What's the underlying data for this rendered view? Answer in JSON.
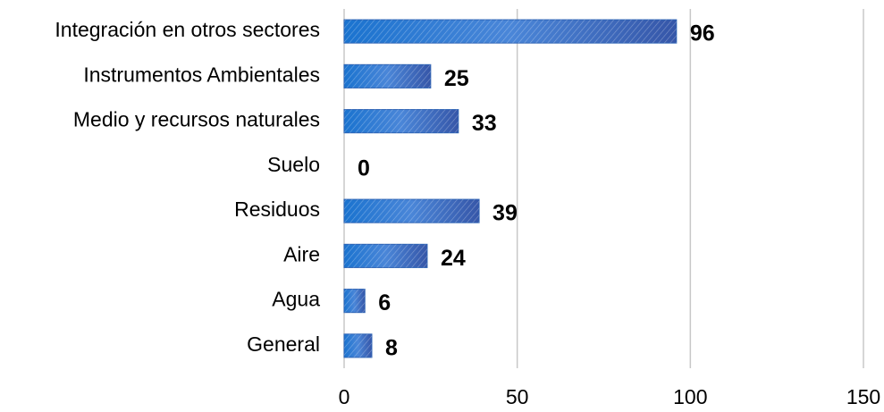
{
  "chart_data": {
    "type": "bar",
    "orientation": "horizontal",
    "categories": [
      "Integración en otros sectores",
      "Instrumentos Ambientales",
      "Medio y recursos naturales",
      "Suelo",
      "Residuos",
      "Aire",
      "Agua",
      "General"
    ],
    "values": [
      96,
      25,
      33,
      0,
      39,
      24,
      6,
      8
    ],
    "color": "#2f64b5",
    "xlim": [
      0,
      150
    ],
    "xticks": [
      0,
      50,
      100,
      150
    ],
    "grid": true
  }
}
